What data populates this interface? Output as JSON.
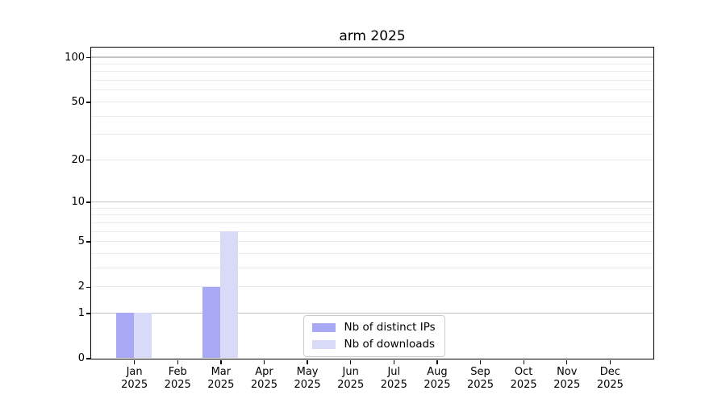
{
  "chart_data": {
    "type": "bar",
    "title": "arm 2025",
    "x_labels": [
      {
        "month": "Jan",
        "year": "2025"
      },
      {
        "month": "Feb",
        "year": "2025"
      },
      {
        "month": "Mar",
        "year": "2025"
      },
      {
        "month": "Apr",
        "year": "2025"
      },
      {
        "month": "May",
        "year": "2025"
      },
      {
        "month": "Jun",
        "year": "2025"
      },
      {
        "month": "Jul",
        "year": "2025"
      },
      {
        "month": "Aug",
        "year": "2025"
      },
      {
        "month": "Sep",
        "year": "2025"
      },
      {
        "month": "Oct",
        "year": "2025"
      },
      {
        "month": "Nov",
        "year": "2025"
      },
      {
        "month": "Dec",
        "year": "2025"
      }
    ],
    "series": [
      {
        "name": "Nb of distinct IPs",
        "color": "#a8a8f5",
        "values": [
          1,
          0,
          2,
          0,
          0,
          0,
          0,
          0,
          0,
          0,
          0,
          0
        ]
      },
      {
        "name": "Nb of downloads",
        "color": "#d9d9f8",
        "values": [
          1,
          0,
          6,
          0,
          0,
          0,
          0,
          0,
          0,
          0,
          0,
          0
        ]
      }
    ],
    "y_axis": {
      "scale": "log1p",
      "labeled_ticks": [
        0,
        1,
        2,
        5,
        10,
        20,
        50,
        100
      ],
      "major_gridlines": [
        1,
        10,
        100
      ],
      "minor_gridlines": [
        2,
        3,
        4,
        5,
        6,
        7,
        8,
        9,
        20,
        30,
        40,
        50,
        60,
        70,
        80,
        90
      ],
      "max_value": 117
    },
    "legend_position": "lower center",
    "colors": {
      "major_grid": "#c3c3c3",
      "minor_grid": "#ebebeb",
      "spine": "#000000",
      "tick": "#000000",
      "legend_border": "#cccccc"
    }
  }
}
